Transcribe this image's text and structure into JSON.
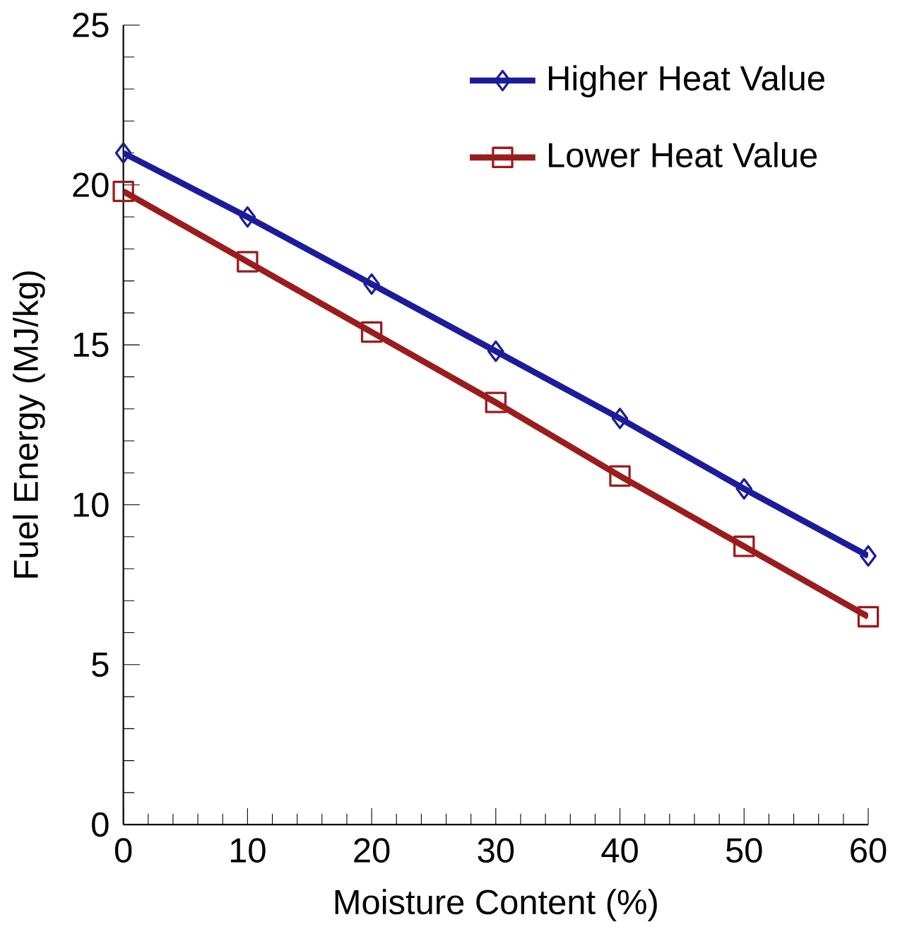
{
  "chart_data": {
    "type": "line",
    "xlabel": "Moisture Content (%)",
    "ylabel": "Fuel Energy (MJ/kg)",
    "x": [
      0,
      10,
      20,
      30,
      40,
      50,
      60
    ],
    "series": [
      {
        "name": "Higher Heat Value",
        "color": "#1c1c9a",
        "marker": "diamond",
        "values": [
          21.0,
          19.0,
          16.9,
          14.8,
          12.7,
          10.5,
          8.4
        ]
      },
      {
        "name": "Lower Heat Value",
        "color": "#9b1c1c",
        "marker": "square",
        "values": [
          19.8,
          17.6,
          15.4,
          13.2,
          10.9,
          8.7,
          6.5
        ]
      }
    ],
    "xlim": [
      0,
      60
    ],
    "xticks": [
      0,
      10,
      20,
      30,
      40,
      50,
      60
    ],
    "ylim": [
      0,
      25
    ],
    "yticks": [
      0,
      5,
      10,
      15,
      20,
      25
    ],
    "grid": false,
    "legend": "top right",
    "line_style": "solid"
  }
}
